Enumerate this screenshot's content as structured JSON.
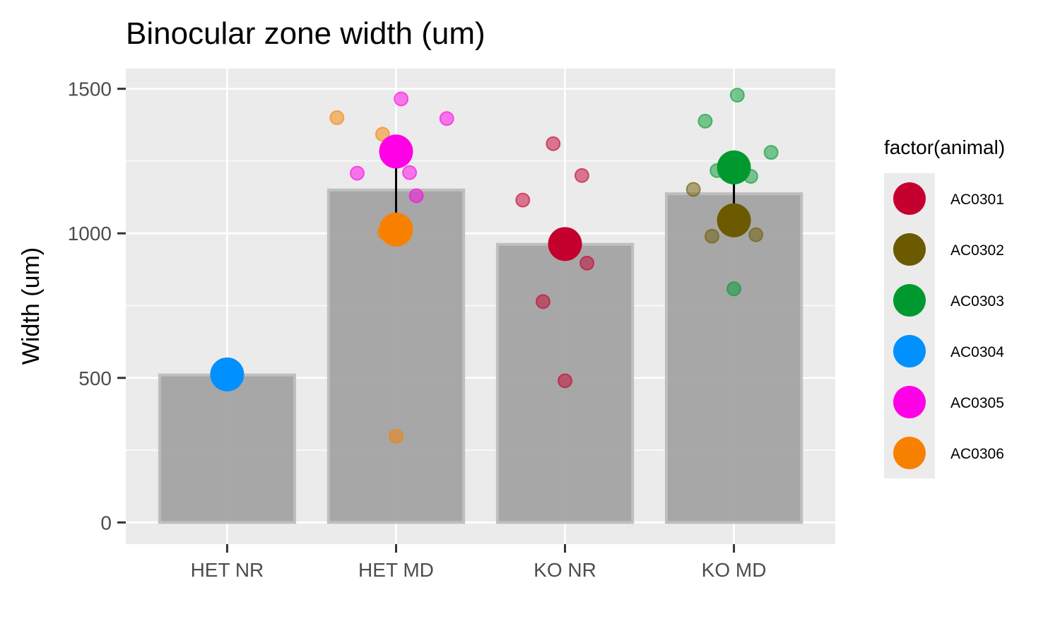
{
  "chart_data": {
    "type": "bar",
    "title": "Binocular zone width (um)",
    "xlabel": "",
    "ylabel": "Width (um)",
    "ylim": [
      -75,
      1570
    ],
    "yticks": [
      0,
      500,
      1000,
      1500
    ],
    "grid": true,
    "categories": [
      "HET NR",
      "HET MD",
      "KO NR",
      "KO MD"
    ],
    "bar_values": [
      510,
      1150,
      962,
      1137
    ],
    "bar_color": "#a3a3a3",
    "legend": {
      "title": "factor(animal)",
      "placement": "right",
      "items": [
        {
          "label": "AC0301",
          "color": "#c4002f"
        },
        {
          "label": "AC0302",
          "color": "#6b5a00"
        },
        {
          "label": "AC0303",
          "color": "#00992f"
        },
        {
          "label": "AC0304",
          "color": "#0090ff"
        },
        {
          "label": "AC0305",
          "color": "#ff00e6"
        },
        {
          "label": "AC0306",
          "color": "#f88000"
        }
      ]
    },
    "animal_means": [
      {
        "category": "HET NR",
        "animal": "AC0304",
        "value": 512
      },
      {
        "category": "HET MD",
        "animal": "AC0305",
        "value": 1283
      },
      {
        "category": "HET MD",
        "animal": "AC0306",
        "value": 1013
      },
      {
        "category": "KO NR",
        "animal": "AC0301",
        "value": 963
      },
      {
        "category": "KO MD",
        "animal": "AC0303",
        "value": 1228
      },
      {
        "category": "KO MD",
        "animal": "AC0302",
        "value": 1045
      }
    ],
    "error_bars": [
      {
        "category": "HET MD",
        "low": 1013,
        "high": 1283
      },
      {
        "category": "KO MD",
        "low": 1045,
        "high": 1228
      }
    ],
    "points": [
      {
        "category": "HET MD",
        "animal": "AC0306",
        "jitter": -0.35,
        "value": 1400
      },
      {
        "category": "HET MD",
        "animal": "AC0306",
        "jitter": -0.08,
        "value": 1343
      },
      {
        "category": "HET MD",
        "animal": "AC0306",
        "jitter": -0.07,
        "value": 1003
      },
      {
        "category": "HET MD",
        "animal": "AC0306",
        "jitter": 0.0,
        "value": 298
      },
      {
        "category": "HET MD",
        "animal": "AC0305",
        "jitter": 0.03,
        "value": 1465
      },
      {
        "category": "HET MD",
        "animal": "AC0305",
        "jitter": 0.3,
        "value": 1397
      },
      {
        "category": "HET MD",
        "animal": "AC0305",
        "jitter": -0.23,
        "value": 1208
      },
      {
        "category": "HET MD",
        "animal": "AC0305",
        "jitter": 0.08,
        "value": 1210
      },
      {
        "category": "HET MD",
        "animal": "AC0305",
        "jitter": 0.12,
        "value": 1130
      },
      {
        "category": "KO NR",
        "animal": "AC0301",
        "jitter": -0.07,
        "value": 1310
      },
      {
        "category": "KO NR",
        "animal": "AC0301",
        "jitter": 0.1,
        "value": 1200
      },
      {
        "category": "KO NR",
        "animal": "AC0301",
        "jitter": -0.25,
        "value": 1115
      },
      {
        "category": "KO NR",
        "animal": "AC0301",
        "jitter": 0.13,
        "value": 897
      },
      {
        "category": "KO NR",
        "animal": "AC0301",
        "jitter": -0.13,
        "value": 764
      },
      {
        "category": "KO NR",
        "animal": "AC0301",
        "jitter": 0.0,
        "value": 490
      },
      {
        "category": "KO MD",
        "animal": "AC0303",
        "jitter": 0.02,
        "value": 1478
      },
      {
        "category": "KO MD",
        "animal": "AC0303",
        "jitter": -0.17,
        "value": 1388
      },
      {
        "category": "KO MD",
        "animal": "AC0303",
        "jitter": 0.22,
        "value": 1280
      },
      {
        "category": "KO MD",
        "animal": "AC0303",
        "jitter": -0.1,
        "value": 1217
      },
      {
        "category": "KO MD",
        "animal": "AC0303",
        "jitter": 0.1,
        "value": 1197
      },
      {
        "category": "KO MD",
        "animal": "AC0303",
        "jitter": 0.0,
        "value": 808
      },
      {
        "category": "KO MD",
        "animal": "AC0302",
        "jitter": -0.24,
        "value": 1152
      },
      {
        "category": "KO MD",
        "animal": "AC0302",
        "jitter": -0.13,
        "value": 990
      },
      {
        "category": "KO MD",
        "animal": "AC0302",
        "jitter": 0.13,
        "value": 995
      }
    ]
  }
}
